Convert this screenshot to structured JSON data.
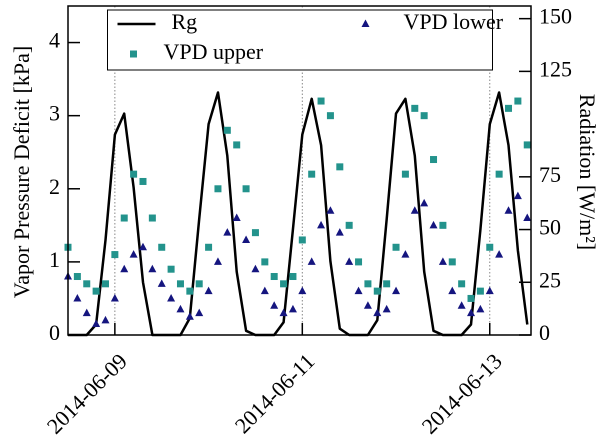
{
  "chart_data": {
    "type": "line-scatter",
    "ylabel": "Vapor Pressure Deficit [kPa]",
    "y2label": "Radiation [W/m²]",
    "x": [
      8.5,
      8.6,
      8.7,
      8.8,
      8.9,
      9.0,
      9.1,
      9.2,
      9.3,
      9.4,
      9.5,
      9.6,
      9.7,
      9.8,
      9.9,
      10.0,
      10.1,
      10.2,
      10.3,
      10.4,
      10.5,
      10.6,
      10.7,
      10.8,
      10.9,
      11.0,
      11.1,
      11.2,
      11.3,
      11.4,
      11.5,
      11.6,
      11.7,
      11.8,
      11.9,
      12.0,
      12.1,
      12.2,
      12.3,
      12.4,
      12.5,
      12.6,
      12.7,
      12.8,
      12.9,
      13.0,
      13.1,
      13.2,
      13.3,
      13.4
    ],
    "xlim": [
      8.5,
      13.44
    ],
    "xticks": [
      {
        "value": 9,
        "label": "2014-06-09"
      },
      {
        "value": 11,
        "label": "2014-06-11"
      },
      {
        "value": 13,
        "label": "2014-06-13"
      }
    ],
    "ylim": [
      0,
      4.5
    ],
    "yticks": [
      0,
      1,
      2,
      3,
      4
    ],
    "y2lim": [
      0,
      156
    ],
    "y2ticks": [
      0,
      25,
      50,
      75,
      125,
      150
    ],
    "grid": true,
    "legend": "upper center",
    "series": [
      {
        "name": "Rg",
        "color": "#000000",
        "axis": "y2",
        "mark": "line",
        "values": [
          0,
          0,
          0,
          5,
          45,
          95,
          105,
          70,
          25,
          0,
          0,
          0,
          0,
          8,
          55,
          100,
          115,
          85,
          30,
          2,
          0,
          0,
          0,
          6,
          50,
          95,
          112,
          90,
          35,
          3,
          0,
          0,
          0,
          7,
          55,
          105,
          112,
          85,
          30,
          2,
          0,
          0,
          0,
          5,
          50,
          100,
          115,
          90,
          40,
          5
        ]
      },
      {
        "name": "VPD upper",
        "color": "#23938c",
        "mark": "square",
        "values": [
          1.2,
          0.8,
          0.7,
          0.6,
          0.7,
          1.1,
          1.6,
          2.2,
          2.1,
          1.6,
          1.2,
          0.9,
          0.7,
          0.6,
          0.7,
          1.2,
          2.0,
          2.8,
          2.6,
          2.0,
          1.4,
          1.0,
          0.8,
          0.7,
          0.8,
          1.3,
          2.2,
          3.2,
          3.0,
          2.3,
          1.5,
          1.0,
          0.7,
          0.6,
          0.7,
          1.2,
          2.2,
          3.1,
          3.0,
          2.4,
          1.5,
          1.0,
          0.7,
          0.5,
          0.6,
          1.2,
          2.2,
          3.1,
          3.2,
          2.6
        ]
      },
      {
        "name": "VPD lower",
        "color": "#15157f",
        "mark": "triangle",
        "values": [
          0.8,
          0.5,
          0.3,
          0.15,
          0.2,
          0.5,
          0.9,
          1.1,
          1.2,
          0.9,
          0.7,
          0.5,
          0.35,
          0.25,
          0.3,
          0.6,
          1.0,
          1.4,
          1.6,
          1.3,
          0.9,
          0.6,
          0.4,
          0.3,
          0.35,
          0.6,
          1.0,
          1.5,
          1.7,
          1.4,
          1.0,
          0.6,
          0.4,
          0.3,
          0.35,
          0.6,
          1.1,
          1.7,
          1.8,
          1.5,
          1.0,
          0.6,
          0.4,
          0.3,
          0.35,
          0.6,
          1.1,
          1.7,
          1.9,
          1.6
        ]
      }
    ]
  }
}
